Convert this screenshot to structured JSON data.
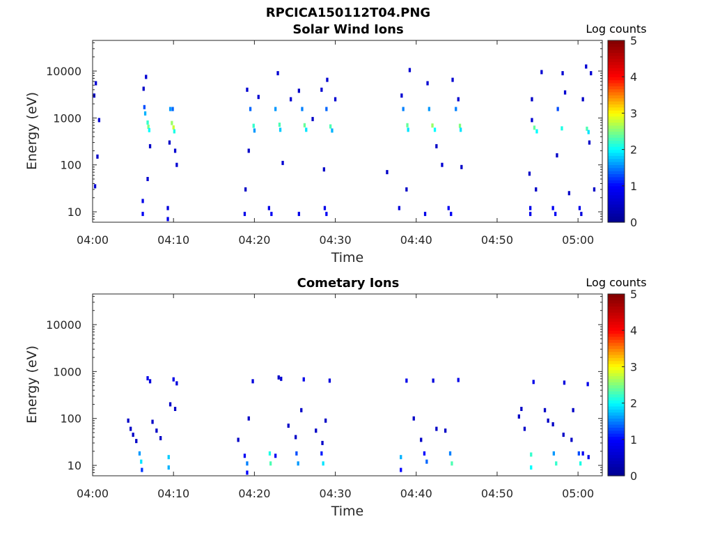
{
  "figure_title": "RPCICA150112T04.PNG",
  "colormap_stops": [
    "#00008f",
    "#0000ff",
    "#00ffff",
    "#ffff00",
    "#ff0000",
    "#800000"
  ],
  "chart_data": [
    {
      "type": "heatmap",
      "title": "Solar Wind Ions",
      "xlabel": "Time",
      "ylabel": "Energy (eV)",
      "x_range_minutes": [
        0,
        63
      ],
      "x_ticks": [
        {
          "minute": 0,
          "label": "04:00"
        },
        {
          "minute": 10,
          "label": "04:10"
        },
        {
          "minute": 20,
          "label": "04:20"
        },
        {
          "minute": 30,
          "label": "04:30"
        },
        {
          "minute": 40,
          "label": "04:40"
        },
        {
          "minute": 50,
          "label": "04:50"
        },
        {
          "minute": 60,
          "label": "05:00"
        }
      ],
      "y_scale": "log",
      "y_range_ev": [
        6,
        45000
      ],
      "y_ticks": [
        {
          "value": 10,
          "label": "10"
        },
        {
          "value": 100,
          "label": "100"
        },
        {
          "value": 1000,
          "label": "1000"
        },
        {
          "value": 10000,
          "label": "10000"
        }
      ],
      "colorbar": {
        "label": "Log counts",
        "min": 0,
        "max": 5,
        "ticks": [
          "0",
          "1",
          "2",
          "3",
          "4",
          "5"
        ]
      },
      "cells": [
        {
          "t": 6.4,
          "e": 1700,
          "c": 1.3
        },
        {
          "t": 6.5,
          "e": 1250,
          "c": 1.7
        },
        {
          "t": 6.8,
          "e": 800,
          "c": 2.2
        },
        {
          "t": 6.9,
          "e": 650,
          "c": 2.5
        },
        {
          "t": 7.0,
          "e": 550,
          "c": 2.0
        },
        {
          "t": 9.6,
          "e": 1550,
          "c": 1.6
        },
        {
          "t": 9.9,
          "e": 1550,
          "c": 1.4
        },
        {
          "t": 9.8,
          "e": 780,
          "c": 2.6
        },
        {
          "t": 10.0,
          "e": 630,
          "c": 2.8
        },
        {
          "t": 10.1,
          "e": 520,
          "c": 2.1
        },
        {
          "t": 19.5,
          "e": 1550,
          "c": 1.4
        },
        {
          "t": 19.9,
          "e": 680,
          "c": 2.2
        },
        {
          "t": 20.0,
          "e": 540,
          "c": 1.6
        },
        {
          "t": 22.6,
          "e": 1550,
          "c": 1.6
        },
        {
          "t": 23.1,
          "e": 720,
          "c": 2.3
        },
        {
          "t": 23.2,
          "e": 560,
          "c": 1.8
        },
        {
          "t": 25.9,
          "e": 1550,
          "c": 1.5
        },
        {
          "t": 26.2,
          "e": 700,
          "c": 2.4
        },
        {
          "t": 26.4,
          "e": 560,
          "c": 1.9
        },
        {
          "t": 28.9,
          "e": 1550,
          "c": 1.4
        },
        {
          "t": 29.4,
          "e": 660,
          "c": 2.3
        },
        {
          "t": 29.6,
          "e": 540,
          "c": 1.7
        },
        {
          "t": 38.4,
          "e": 1550,
          "c": 1.5
        },
        {
          "t": 38.9,
          "e": 700,
          "c": 2.4
        },
        {
          "t": 39.0,
          "e": 560,
          "c": 1.9
        },
        {
          "t": 41.6,
          "e": 1550,
          "c": 1.6
        },
        {
          "t": 42.0,
          "e": 690,
          "c": 2.6
        },
        {
          "t": 42.3,
          "e": 560,
          "c": 2.0
        },
        {
          "t": 44.9,
          "e": 1550,
          "c": 1.5
        },
        {
          "t": 45.4,
          "e": 680,
          "c": 2.5
        },
        {
          "t": 45.5,
          "e": 560,
          "c": 1.9
        },
        {
          "t": 54.6,
          "e": 620,
          "c": 2.4
        },
        {
          "t": 54.9,
          "e": 520,
          "c": 2.0
        },
        {
          "t": 57.5,
          "e": 1550,
          "c": 1.3
        },
        {
          "t": 58.0,
          "e": 600,
          "c": 2.1
        },
        {
          "t": 61.1,
          "e": 590,
          "c": 2.3
        },
        {
          "t": 61.3,
          "e": 500,
          "c": 1.9
        },
        {
          "t": 6.2,
          "e": 17,
          "c": 0.8
        },
        {
          "t": 6.2,
          "e": 9,
          "c": 0.9
        },
        {
          "t": 9.3,
          "e": 12,
          "c": 0.7
        },
        {
          "t": 9.3,
          "e": 7,
          "c": 0.8
        },
        {
          "t": 18.8,
          "e": 9,
          "c": 0.8
        },
        {
          "t": 21.8,
          "e": 12,
          "c": 0.8
        },
        {
          "t": 22.1,
          "e": 9,
          "c": 0.9
        },
        {
          "t": 25.5,
          "e": 9,
          "c": 0.8
        },
        {
          "t": 28.7,
          "e": 12,
          "c": 0.8
        },
        {
          "t": 28.9,
          "e": 9,
          "c": 0.9
        },
        {
          "t": 37.9,
          "e": 12,
          "c": 0.7
        },
        {
          "t": 41.1,
          "e": 9,
          "c": 0.8
        },
        {
          "t": 44.0,
          "e": 12,
          "c": 0.9
        },
        {
          "t": 44.3,
          "e": 9,
          "c": 0.9
        },
        {
          "t": 54.1,
          "e": 12,
          "c": 0.8
        },
        {
          "t": 54.1,
          "e": 9,
          "c": 0.8
        },
        {
          "t": 56.9,
          "e": 12,
          "c": 0.9
        },
        {
          "t": 57.2,
          "e": 9,
          "c": 0.9
        },
        {
          "t": 60.2,
          "e": 12,
          "c": 0.8
        },
        {
          "t": 60.4,
          "e": 9,
          "c": 0.7
        },
        {
          "t": 0.4,
          "e": 5500,
          "c": 0.6
        },
        {
          "t": 0.2,
          "e": 3000,
          "c": 0.5
        },
        {
          "t": 0.8,
          "e": 900,
          "c": 0.6
        },
        {
          "t": 0.3,
          "e": 35,
          "c": 0.6
        },
        {
          "t": 0.6,
          "e": 150,
          "c": 0.5
        },
        {
          "t": 6.6,
          "e": 7500,
          "c": 0.6
        },
        {
          "t": 6.3,
          "e": 4200,
          "c": 0.5
        },
        {
          "t": 7.1,
          "e": 250,
          "c": 0.5
        },
        {
          "t": 6.8,
          "e": 50,
          "c": 0.6
        },
        {
          "t": 10.2,
          "e": 200,
          "c": 0.6
        },
        {
          "t": 10.4,
          "e": 100,
          "c": 0.6
        },
        {
          "t": 9.5,
          "e": 300,
          "c": 0.5
        },
        {
          "t": 19.1,
          "e": 4000,
          "c": 0.6
        },
        {
          "t": 19.3,
          "e": 200,
          "c": 0.5
        },
        {
          "t": 18.9,
          "e": 30,
          "c": 0.5
        },
        {
          "t": 20.5,
          "e": 2800,
          "c": 0.6
        },
        {
          "t": 22.9,
          "e": 9000,
          "c": 0.6
        },
        {
          "t": 23.5,
          "e": 110,
          "c": 0.6
        },
        {
          "t": 24.5,
          "e": 2500,
          "c": 0.6
        },
        {
          "t": 25.5,
          "e": 3800,
          "c": 0.5
        },
        {
          "t": 27.2,
          "e": 950,
          "c": 0.5
        },
        {
          "t": 28.3,
          "e": 4000,
          "c": 0.6
        },
        {
          "t": 28.6,
          "e": 80,
          "c": 0.5
        },
        {
          "t": 29.0,
          "e": 6500,
          "c": 0.6
        },
        {
          "t": 30.0,
          "e": 2500,
          "c": 0.6
        },
        {
          "t": 36.4,
          "e": 70,
          "c": 0.5
        },
        {
          "t": 38.2,
          "e": 3000,
          "c": 0.6
        },
        {
          "t": 38.8,
          "e": 30,
          "c": 0.5
        },
        {
          "t": 39.2,
          "e": 10500,
          "c": 0.6
        },
        {
          "t": 41.4,
          "e": 5500,
          "c": 0.6
        },
        {
          "t": 42.5,
          "e": 250,
          "c": 0.5
        },
        {
          "t": 43.2,
          "e": 100,
          "c": 0.6
        },
        {
          "t": 44.5,
          "e": 6500,
          "c": 0.6
        },
        {
          "t": 45.2,
          "e": 2500,
          "c": 0.6
        },
        {
          "t": 45.6,
          "e": 90,
          "c": 0.5
        },
        {
          "t": 54.3,
          "e": 2500,
          "c": 0.5
        },
        {
          "t": 54.3,
          "e": 900,
          "c": 0.6
        },
        {
          "t": 54.0,
          "e": 65,
          "c": 0.5
        },
        {
          "t": 54.8,
          "e": 30,
          "c": 0.5
        },
        {
          "t": 55.5,
          "e": 9500,
          "c": 0.6
        },
        {
          "t": 57.4,
          "e": 160,
          "c": 0.5
        },
        {
          "t": 58.1,
          "e": 9000,
          "c": 0.6
        },
        {
          "t": 58.4,
          "e": 3500,
          "c": 0.6
        },
        {
          "t": 58.9,
          "e": 25,
          "c": 0.5
        },
        {
          "t": 60.6,
          "e": 2500,
          "c": 0.5
        },
        {
          "t": 61.0,
          "e": 12500,
          "c": 0.6
        },
        {
          "t": 61.6,
          "e": 9000,
          "c": 0.6
        },
        {
          "t": 61.4,
          "e": 300,
          "c": 0.5
        },
        {
          "t": 62.0,
          "e": 30,
          "c": 0.5
        }
      ]
    },
    {
      "type": "heatmap",
      "title": "Cometary Ions",
      "xlabel": "Time",
      "ylabel": "Energy (eV)",
      "x_range_minutes": [
        0,
        63
      ],
      "x_ticks": [
        {
          "minute": 0,
          "label": "04:00"
        },
        {
          "minute": 10,
          "label": "04:10"
        },
        {
          "minute": 20,
          "label": "04:20"
        },
        {
          "minute": 30,
          "label": "04:30"
        },
        {
          "minute": 40,
          "label": "04:40"
        },
        {
          "minute": 50,
          "label": "04:50"
        },
        {
          "minute": 60,
          "label": "05:00"
        }
      ],
      "y_scale": "log",
      "y_range_ev": [
        6,
        45000
      ],
      "y_ticks": [
        {
          "value": 10,
          "label": "10"
        },
        {
          "value": 100,
          "label": "100"
        },
        {
          "value": 1000,
          "label": "1000"
        },
        {
          "value": 10000,
          "label": "10000"
        }
      ],
      "colorbar": {
        "label": "Log counts",
        "min": 0,
        "max": 5,
        "ticks": [
          "0",
          "1",
          "2",
          "3",
          "4",
          "5"
        ]
      },
      "cells": [
        {
          "t": 5.8,
          "e": 18,
          "c": 1.6
        },
        {
          "t": 6.0,
          "e": 12,
          "c": 1.9
        },
        {
          "t": 6.1,
          "e": 8,
          "c": 1.2
        },
        {
          "t": 9.4,
          "e": 15,
          "c": 1.8
        },
        {
          "t": 9.4,
          "e": 9,
          "c": 1.7
        },
        {
          "t": 18.8,
          "e": 16,
          "c": 0.9
        },
        {
          "t": 19.1,
          "e": 11,
          "c": 1.5
        },
        {
          "t": 19.1,
          "e": 7,
          "c": 1.0
        },
        {
          "t": 21.9,
          "e": 18,
          "c": 2.1
        },
        {
          "t": 22.0,
          "e": 11,
          "c": 2.3
        },
        {
          "t": 22.6,
          "e": 16,
          "c": 0.9
        },
        {
          "t": 25.2,
          "e": 18,
          "c": 1.3
        },
        {
          "t": 25.4,
          "e": 11,
          "c": 1.6
        },
        {
          "t": 28.3,
          "e": 18,
          "c": 1.1
        },
        {
          "t": 28.5,
          "e": 11,
          "c": 1.9
        },
        {
          "t": 38.1,
          "e": 15,
          "c": 1.7
        },
        {
          "t": 38.1,
          "e": 8,
          "c": 1.0
        },
        {
          "t": 41.0,
          "e": 18,
          "c": 1.0
        },
        {
          "t": 41.3,
          "e": 12,
          "c": 1.4
        },
        {
          "t": 44.2,
          "e": 18,
          "c": 1.5
        },
        {
          "t": 44.4,
          "e": 11,
          "c": 2.3
        },
        {
          "t": 54.2,
          "e": 17,
          "c": 2.2
        },
        {
          "t": 54.2,
          "e": 9,
          "c": 2.0
        },
        {
          "t": 57.0,
          "e": 18,
          "c": 1.6
        },
        {
          "t": 57.3,
          "e": 11,
          "c": 2.2
        },
        {
          "t": 60.1,
          "e": 18,
          "c": 1.3
        },
        {
          "t": 60.3,
          "e": 11,
          "c": 2.1
        },
        {
          "t": 60.6,
          "e": 18,
          "c": 0.9
        },
        {
          "t": 61.3,
          "e": 15,
          "c": 0.8
        },
        {
          "t": 6.8,
          "e": 720,
          "c": 0.8
        },
        {
          "t": 7.1,
          "e": 620,
          "c": 0.7
        },
        {
          "t": 10.0,
          "e": 680,
          "c": 0.8
        },
        {
          "t": 10.4,
          "e": 560,
          "c": 0.7
        },
        {
          "t": 19.8,
          "e": 620,
          "c": 0.7
        },
        {
          "t": 23.3,
          "e": 700,
          "c": 0.6
        },
        {
          "t": 26.1,
          "e": 680,
          "c": 0.8
        },
        {
          "t": 29.3,
          "e": 640,
          "c": 0.7
        },
        {
          "t": 38.8,
          "e": 640,
          "c": 0.8
        },
        {
          "t": 42.1,
          "e": 640,
          "c": 0.7
        },
        {
          "t": 45.2,
          "e": 660,
          "c": 0.8
        },
        {
          "t": 54.5,
          "e": 600,
          "c": 0.8
        },
        {
          "t": 58.3,
          "e": 580,
          "c": 0.7
        },
        {
          "t": 61.2,
          "e": 540,
          "c": 0.8
        },
        {
          "t": 4.4,
          "e": 90,
          "c": 0.5
        },
        {
          "t": 4.7,
          "e": 60,
          "c": 0.5
        },
        {
          "t": 5.0,
          "e": 45,
          "c": 0.5
        },
        {
          "t": 5.4,
          "e": 33,
          "c": 0.5
        },
        {
          "t": 7.4,
          "e": 85,
          "c": 0.5
        },
        {
          "t": 7.9,
          "e": 55,
          "c": 0.5
        },
        {
          "t": 8.4,
          "e": 38,
          "c": 0.5
        },
        {
          "t": 10.2,
          "e": 160,
          "c": 0.5
        },
        {
          "t": 9.6,
          "e": 200,
          "c": 0.5
        },
        {
          "t": 18.0,
          "e": 35,
          "c": 0.5
        },
        {
          "t": 19.3,
          "e": 100,
          "c": 0.5
        },
        {
          "t": 23.0,
          "e": 750,
          "c": 0.5
        },
        {
          "t": 24.2,
          "e": 70,
          "c": 0.5
        },
        {
          "t": 25.1,
          "e": 40,
          "c": 0.5
        },
        {
          "t": 25.8,
          "e": 150,
          "c": 0.5
        },
        {
          "t": 27.6,
          "e": 55,
          "c": 0.5
        },
        {
          "t": 28.4,
          "e": 30,
          "c": 0.5
        },
        {
          "t": 28.8,
          "e": 90,
          "c": 0.5
        },
        {
          "t": 39.7,
          "e": 100,
          "c": 0.5
        },
        {
          "t": 40.6,
          "e": 35,
          "c": 0.5
        },
        {
          "t": 42.5,
          "e": 60,
          "c": 0.5
        },
        {
          "t": 43.6,
          "e": 55,
          "c": 0.5
        },
        {
          "t": 52.7,
          "e": 110,
          "c": 0.5
        },
        {
          "t": 53.0,
          "e": 160,
          "c": 0.5
        },
        {
          "t": 53.4,
          "e": 60,
          "c": 0.5
        },
        {
          "t": 55.9,
          "e": 150,
          "c": 0.5
        },
        {
          "t": 56.3,
          "e": 90,
          "c": 0.5
        },
        {
          "t": 56.9,
          "e": 75,
          "c": 0.5
        },
        {
          "t": 58.2,
          "e": 45,
          "c": 0.5
        },
        {
          "t": 59.4,
          "e": 150,
          "c": 0.5
        },
        {
          "t": 59.2,
          "e": 35,
          "c": 0.5
        }
      ]
    }
  ]
}
